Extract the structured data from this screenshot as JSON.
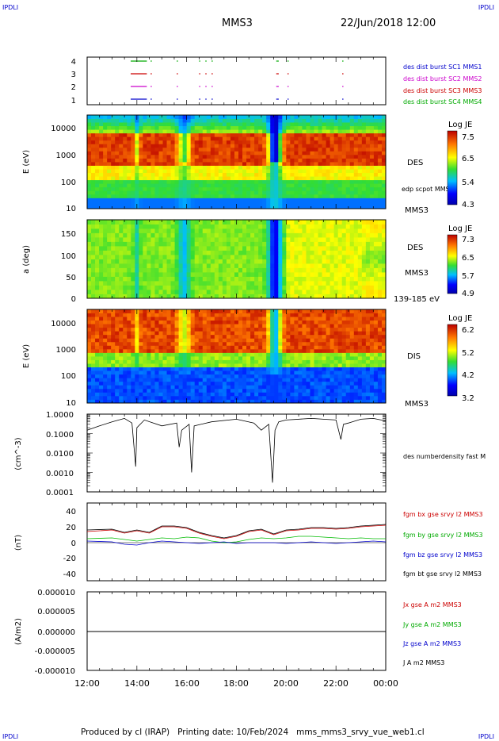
{
  "corner": {
    "tl": "IPDLI",
    "tr": "IPDLI",
    "bl": "IPDLI",
    "br": "IPDLI"
  },
  "header": {
    "spacecraft": "MMS3",
    "datetime": "22/Jun/2018 12:00"
  },
  "footer": {
    "text": "Produced by cl (IRAP)   Printing date: 10/Feb/2024   mms_mms3_srvy_vue_web1.cl"
  },
  "colors": {
    "c1": "#0000cc",
    "c2": "#cc00cc",
    "c3": "#cc0000",
    "c4": "#00aa00",
    "black": "#000000"
  },
  "chart_data": [
    {
      "type": "scatter",
      "name": "burst-availability",
      "ylim": [
        0.5,
        4.5
      ],
      "yticks": [
        "4",
        "3",
        "2",
        "1"
      ],
      "legend": [
        "des dist burst SC1 MMS1",
        "des dist burst SC2 MMS2",
        "des dist burst SC3 MMS3",
        "des dist burst SC4 MMS4"
      ]
    },
    {
      "type": "heatmap",
      "name": "des-energy",
      "ylabel": "E (eV)",
      "yscale": "log",
      "yticks": [
        "10000",
        "1000",
        "100",
        "10"
      ],
      "side_labels": [
        "DES",
        "edp scpot MMS3",
        "MMS3"
      ],
      "colorbar": {
        "label": "Log JE",
        "ticks": [
          "7.5",
          "6.5",
          "5.4",
          "4.3"
        ]
      }
    },
    {
      "type": "heatmap",
      "name": "des-pitch",
      "ylabel": "a (deg)",
      "yticks": [
        "150",
        "100",
        "50",
        "0"
      ],
      "side_labels": [
        "DES",
        "MMS3",
        "139-185 eV"
      ],
      "colorbar": {
        "label": "Log JE",
        "ticks": [
          "7.3",
          "6.5",
          "5.7",
          "4.9"
        ]
      }
    },
    {
      "type": "heatmap",
      "name": "dis-energy",
      "ylabel": "E (eV)",
      "yscale": "log",
      "yticks": [
        "10000",
        "1000",
        "100",
        "10"
      ],
      "side_labels": [
        "DIS",
        "MMS3"
      ],
      "colorbar": {
        "label": "Log JE",
        "ticks": [
          "6.2",
          "5.2",
          "4.2",
          "3.2"
        ]
      }
    },
    {
      "type": "line",
      "name": "density",
      "ylabel": "(cm^-3)",
      "yscale": "log",
      "yticks": [
        "1.0000",
        "0.1000",
        "0.0100",
        "0.0010",
        "0.0001"
      ],
      "legend": [
        "des numberdensity fast M"
      ],
      "x": [
        12.0,
        12.5,
        13.0,
        13.5,
        13.8,
        13.95,
        14.0,
        14.3,
        15.0,
        15.6,
        15.7,
        15.8,
        16.1,
        16.2,
        16.3,
        17.0,
        18.0,
        18.7,
        19.0,
        19.3,
        19.45,
        19.55,
        19.7,
        20.0,
        21.0,
        22.0,
        22.2,
        22.3,
        22.5,
        23.0,
        23.5,
        24.0
      ],
      "y": [
        0.15,
        0.25,
        0.4,
        0.6,
        0.35,
        0.002,
        0.2,
        0.5,
        0.25,
        0.35,
        0.02,
        0.15,
        0.3,
        0.001,
        0.25,
        0.4,
        0.55,
        0.35,
        0.15,
        0.3,
        0.0003,
        0.15,
        0.4,
        0.5,
        0.6,
        0.5,
        0.05,
        0.3,
        0.35,
        0.55,
        0.6,
        0.45
      ]
    },
    {
      "type": "line",
      "name": "magnetic-field",
      "ylabel": "(nT)",
      "yticks": [
        "40",
        "20",
        "0",
        "-20",
        "-40"
      ],
      "ylim": [
        -50,
        50
      ],
      "legend": [
        "fgm bx gse srvy l2 MMS3",
        "fgm by gse srvy l2 MMS3",
        "fgm bz gse srvy l2 MMS3",
        "fgm bt gse srvy l2 MMS3"
      ],
      "x": [
        12.0,
        13.0,
        13.5,
        14.0,
        14.5,
        15.0,
        15.5,
        16.0,
        16.5,
        17.0,
        17.5,
        18.0,
        18.5,
        19.0,
        19.5,
        20.0,
        20.5,
        21.0,
        21.5,
        22.0,
        22.5,
        23.0,
        23.5,
        24.0
      ],
      "series": [
        {
          "name": "fgm bx gse srvy l2 MMS3",
          "values": [
            14,
            16,
            12,
            15,
            12,
            20,
            20,
            18,
            12,
            8,
            5,
            8,
            14,
            16,
            10,
            15,
            16,
            18,
            18,
            17,
            18,
            20,
            21,
            22
          ]
        },
        {
          "name": "fgm by gse srvy l2 MMS3",
          "values": [
            5,
            6,
            4,
            2,
            4,
            6,
            5,
            7,
            6,
            2,
            0,
            1,
            4,
            6,
            5,
            6,
            8,
            8,
            7,
            6,
            5,
            6,
            5,
            5
          ]
        },
        {
          "name": "fgm bz gse srvy l2 MMS3",
          "values": [
            2,
            1,
            -2,
            -3,
            0,
            2,
            1,
            0,
            -1,
            0,
            1,
            -1,
            0,
            0,
            0,
            -1,
            0,
            1,
            0,
            -1,
            0,
            1,
            2,
            1
          ]
        },
        {
          "name": "fgm bt gse srvy l2 MMS3",
          "values": [
            16,
            17,
            13,
            16,
            13,
            21,
            21,
            19,
            13,
            9,
            6,
            9,
            15,
            17,
            11,
            16,
            17,
            19,
            19,
            18,
            19,
            21,
            22,
            23
          ]
        }
      ]
    },
    {
      "type": "line",
      "name": "current-density",
      "ylabel": "(A/m2)",
      "yticks": [
        "0.000010",
        "0.000005",
        "0.000000",
        "-0.000005",
        "-0.000010"
      ],
      "ylim": [
        -1e-05,
        1e-05
      ],
      "legend": [
        "Jx gse A m2 MMS3",
        "Jy gse A m2 MMS3",
        "Jz gse A m2 MMS3",
        "J A m2 MMS3"
      ]
    }
  ],
  "xaxis": {
    "ticks": [
      "12:00",
      "14:00",
      "16:00",
      "18:00",
      "20:00",
      "22:00",
      "00:00"
    ]
  }
}
